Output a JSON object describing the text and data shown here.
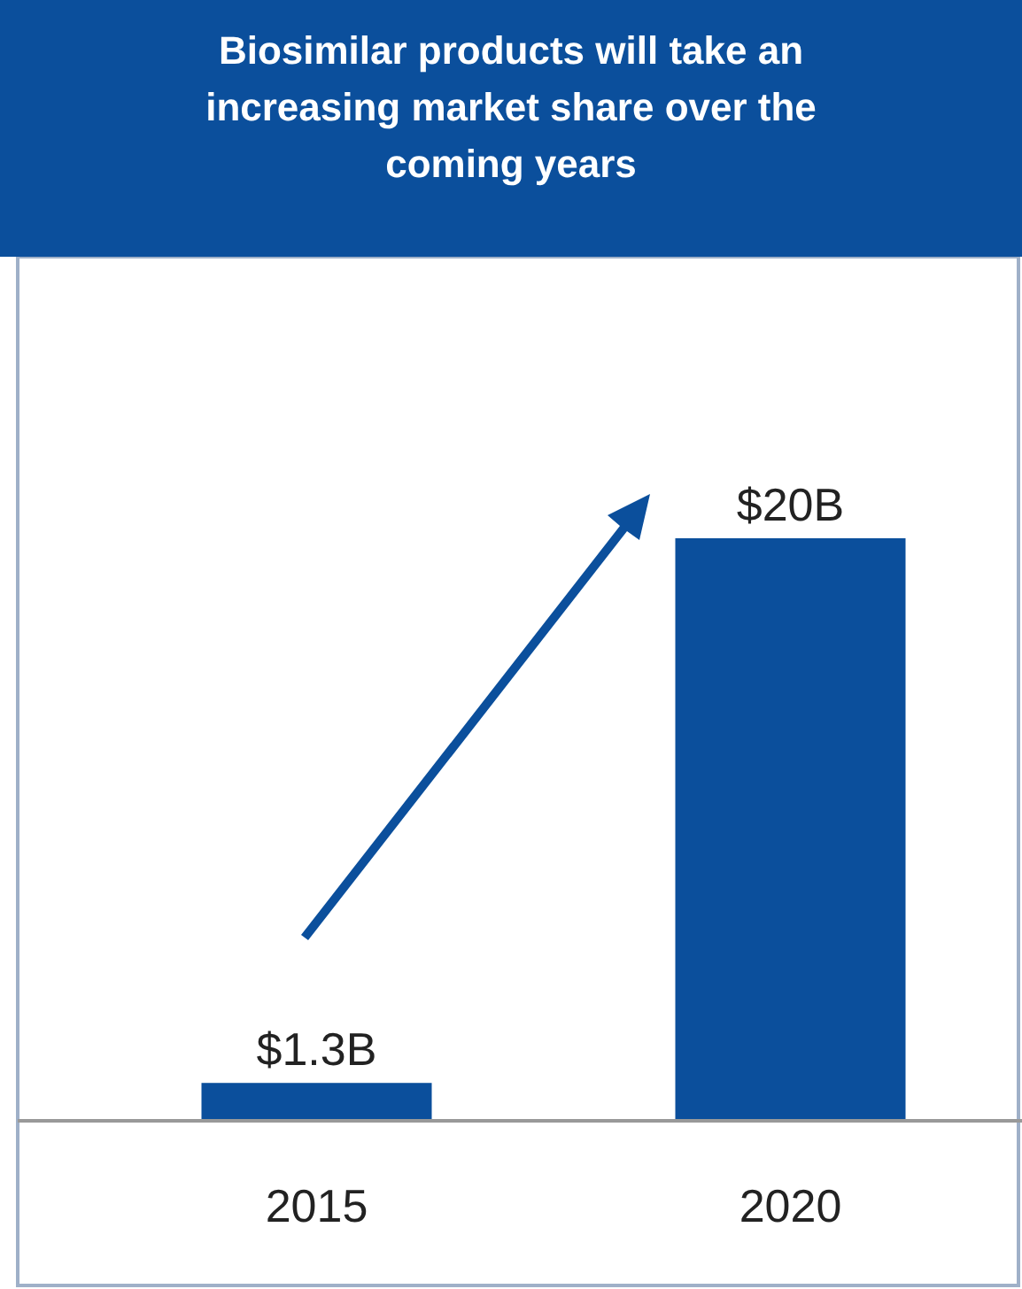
{
  "chart_data": {
    "type": "bar",
    "title": "Biosimilar products will take an increasing market share over the coming years",
    "categories": [
      "2015",
      "2020"
    ],
    "values": [
      1.3,
      20
    ],
    "value_labels": [
      "$1.3B",
      "$20B"
    ],
    "color": "#0b4f9c"
  }
}
